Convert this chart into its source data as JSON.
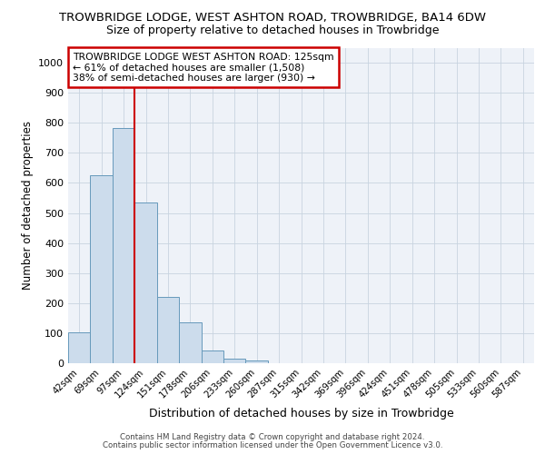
{
  "title1": "TROWBRIDGE LODGE, WEST ASHTON ROAD, TROWBRIDGE, BA14 6DW",
  "title2": "Size of property relative to detached houses in Trowbridge",
  "xlabel": "Distribution of detached houses by size in Trowbridge",
  "ylabel": "Number of detached properties",
  "bar_labels": [
    "42sqm",
    "69sqm",
    "97sqm",
    "124sqm",
    "151sqm",
    "178sqm",
    "206sqm",
    "233sqm",
    "260sqm",
    "287sqm",
    "315sqm",
    "342sqm",
    "369sqm",
    "396sqm",
    "424sqm",
    "451sqm",
    "478sqm",
    "505sqm",
    "533sqm",
    "560sqm",
    "587sqm"
  ],
  "bar_values": [
    102,
    625,
    782,
    535,
    222,
    135,
    43,
    15,
    8,
    0,
    0,
    0,
    0,
    0,
    0,
    0,
    0,
    0,
    0,
    0,
    0
  ],
  "bar_color": "#ccdcec",
  "bar_edge_color": "#6699bb",
  "grid_color": "#c8d4e0",
  "background_color": "#eef2f8",
  "vline_color": "#cc0000",
  "annotation_text": "TROWBRIDGE LODGE WEST ASHTON ROAD: 125sqm\n← 61% of detached houses are smaller (1,508)\n38% of semi-detached houses are larger (930) →",
  "annotation_box_color": "#ffffff",
  "annotation_border_color": "#cc0000",
  "footer1": "Contains HM Land Registry data © Crown copyright and database right 2024.",
  "footer2": "Contains public sector information licensed under the Open Government Licence v3.0.",
  "ylim": [
    0,
    1050
  ],
  "yticks": [
    0,
    100,
    200,
    300,
    400,
    500,
    600,
    700,
    800,
    900,
    1000
  ]
}
